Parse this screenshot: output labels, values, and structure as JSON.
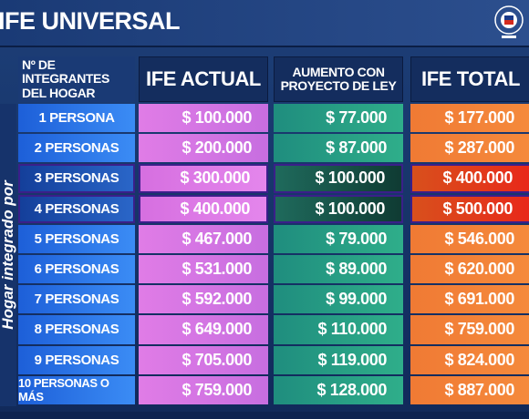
{
  "title": "IFE UNIVERSAL",
  "side_label": "Hogar integrado por",
  "table": {
    "headers": [
      [
        "Nº DE INTEGRANTES",
        "DEL HOGAR"
      ],
      [
        "IFE ACTUAL"
      ],
      [
        "AUMENTO CON",
        "PROYECTO DE LEY"
      ],
      [
        "IFE TOTAL"
      ]
    ],
    "rows": [
      [
        "1 PERSONA",
        "$ 100.000",
        "$ 77.000",
        "$ 177.000"
      ],
      [
        "2 PERSONAS",
        "$ 200.000",
        "$ 87.000",
        "$ 287.000"
      ],
      [
        "3 PERSONAS",
        "$ 300.000",
        "$ 100.000",
        "$ 400.000"
      ],
      [
        "4 PERSONAS",
        "$ 400.000",
        "$ 100.000",
        "$ 500.000"
      ],
      [
        "5 PERSONAS",
        "$ 467.000",
        "$ 79.000",
        "$ 546.000"
      ],
      [
        "6 PERSONAS",
        "$ 531.000",
        "$ 89.000",
        "$ 620.000"
      ],
      [
        "7 PERSONAS",
        "$ 592.000",
        "$ 99.000",
        "$ 691.000"
      ],
      [
        "8 PERSONAS",
        "$ 649.000",
        "$ 110.000",
        "$ 759.000"
      ],
      [
        "9 PERSONAS",
        "$ 705.000",
        "$ 119.000",
        "$ 824.000"
      ],
      [
        "10 PERSONAS O MÁS",
        "$ 759.000",
        "$ 128.000",
        "$ 887.000"
      ]
    ]
  }
}
